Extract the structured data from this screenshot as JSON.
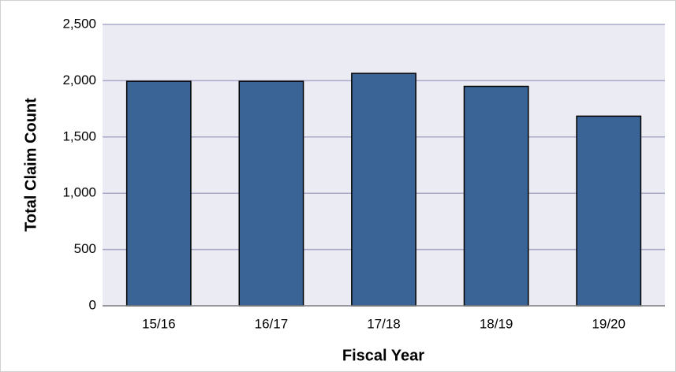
{
  "chart_data": {
    "type": "bar",
    "x_label": "Fiscal Year",
    "y_label": "Total Claim Count",
    "categories": [
      "15/16",
      "16/17",
      "17/18",
      "18/19",
      "19/20"
    ],
    "values": [
      1995,
      1995,
      2065,
      1950,
      1685
    ],
    "color": "#3a6496",
    "ylim": [
      0,
      2500
    ],
    "yticks": [
      0,
      500,
      {
        "value": 1000,
        "label": "1,000"
      },
      {
        "value": 1500,
        "label": "1,500"
      },
      {
        "value": 2000,
        "label": "2,000"
      },
      {
        "value": 2500,
        "label": "2,500"
      }
    ],
    "grid": true
  }
}
